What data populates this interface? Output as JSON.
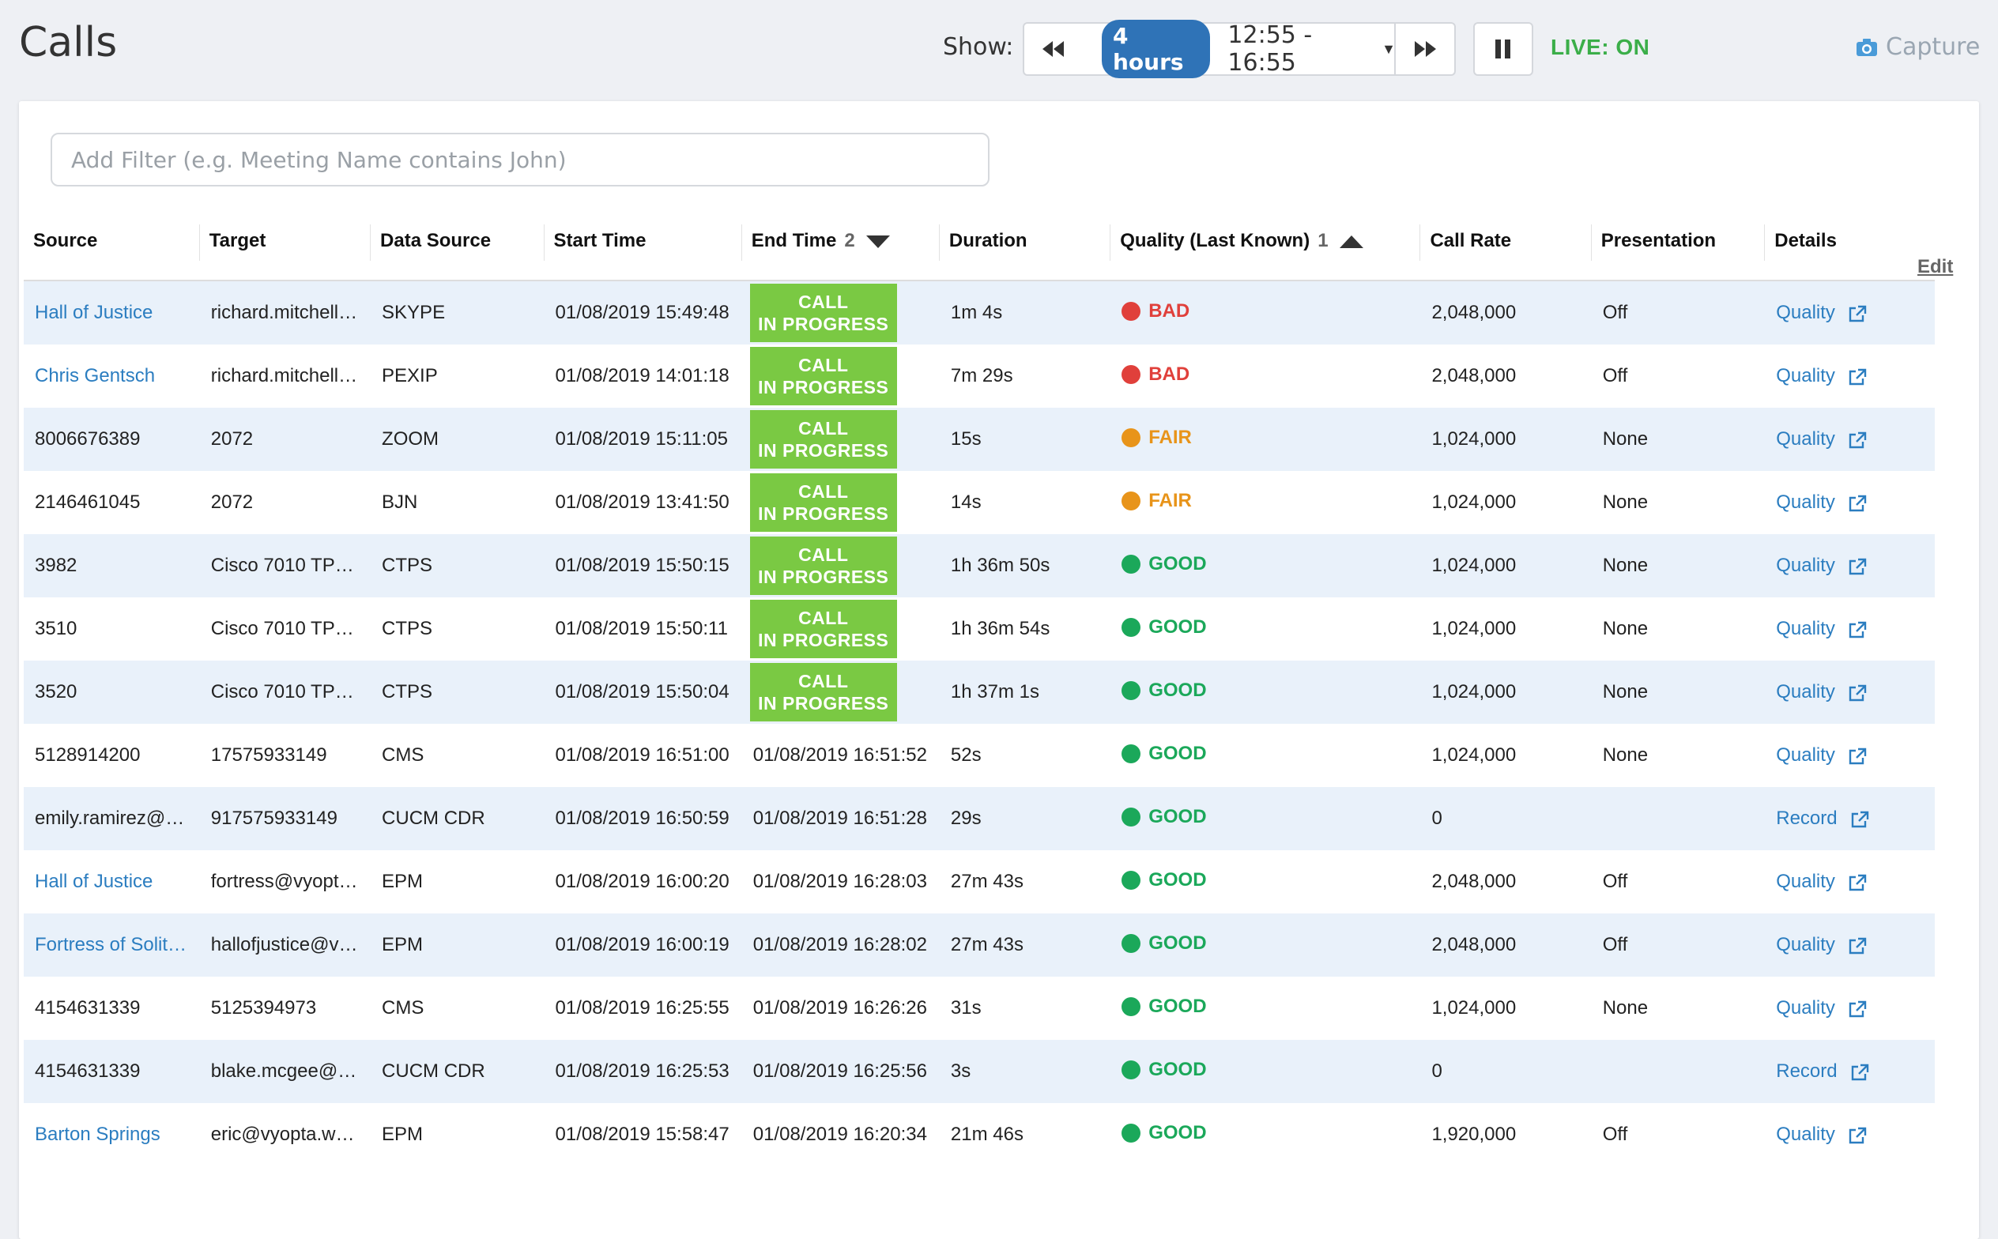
{
  "header": {
    "title": "Calls",
    "show_label": "Show:",
    "range_pill": "4 hours",
    "range_text": "12:55 - 16:55",
    "live_label": "LIVE: ON",
    "capture_label": "Capture"
  },
  "filter": {
    "placeholder": "Add Filter (e.g. Meeting Name contains John)",
    "value": ""
  },
  "edit_label": "Edit",
  "columns": {
    "source": "Source",
    "target": "Target",
    "data_source": "Data Source",
    "start_time": "Start Time",
    "end_time": "End Time",
    "end_time_sort": "2",
    "duration": "Duration",
    "quality": "Quality (Last Known)",
    "quality_sort": "1",
    "call_rate": "Call Rate",
    "presentation": "Presentation",
    "details": "Details"
  },
  "in_progress": {
    "line1": "CALL",
    "line2": "IN PROGRESS"
  },
  "quality_colors": {
    "BAD": "#e0403b",
    "FAIR": "#e8941a",
    "GOOD": "#1ba85a"
  },
  "rows": [
    {
      "source": "Hall of Justice",
      "source_link": true,
      "target": "richard.mitchell…",
      "data_source": "SKYPE",
      "start": "01/08/2019 15:49:48",
      "end": "",
      "in_progress": true,
      "duration": "1m 4s",
      "quality": "BAD",
      "call_rate": "2,048,000",
      "presentation": "Off",
      "details": "Quality"
    },
    {
      "source": "Chris Gentsch",
      "source_link": true,
      "target": "richard.mitchell…",
      "data_source": "PEXIP",
      "start": "01/08/2019 14:01:18",
      "end": "",
      "in_progress": true,
      "duration": "7m 29s",
      "quality": "BAD",
      "call_rate": "2,048,000",
      "presentation": "Off",
      "details": "Quality"
    },
    {
      "source": "8006676389",
      "source_link": false,
      "target": "2072",
      "data_source": "ZOOM",
      "start": "01/08/2019 15:11:05",
      "end": "",
      "in_progress": true,
      "duration": "15s",
      "quality": "FAIR",
      "call_rate": "1,024,000",
      "presentation": "None",
      "details": "Quality"
    },
    {
      "source": "2146461045",
      "source_link": false,
      "target": "2072",
      "data_source": "BJN",
      "start": "01/08/2019 13:41:50",
      "end": "",
      "in_progress": true,
      "duration": "14s",
      "quality": "FAIR",
      "call_rate": "1,024,000",
      "presentation": "None",
      "details": "Quality"
    },
    {
      "source": "3982",
      "source_link": false,
      "target": "Cisco 7010 TP…",
      "data_source": "CTPS",
      "start": "01/08/2019 15:50:15",
      "end": "",
      "in_progress": true,
      "duration": "1h 36m 50s",
      "quality": "GOOD",
      "call_rate": "1,024,000",
      "presentation": "None",
      "details": "Quality"
    },
    {
      "source": "3510",
      "source_link": false,
      "target": "Cisco 7010 TP…",
      "data_source": "CTPS",
      "start": "01/08/2019 15:50:11",
      "end": "",
      "in_progress": true,
      "duration": "1h 36m 54s",
      "quality": "GOOD",
      "call_rate": "1,024,000",
      "presentation": "None",
      "details": "Quality"
    },
    {
      "source": "3520",
      "source_link": false,
      "target": "Cisco 7010 TP…",
      "data_source": "CTPS",
      "start": "01/08/2019 15:50:04",
      "end": "",
      "in_progress": true,
      "duration": "1h 37m 1s",
      "quality": "GOOD",
      "call_rate": "1,024,000",
      "presentation": "None",
      "details": "Quality"
    },
    {
      "source": "5128914200",
      "source_link": false,
      "target": "17575933149",
      "data_source": "CMS",
      "start": "01/08/2019 16:51:00",
      "end": "01/08/2019 16:51:52",
      "in_progress": false,
      "duration": "52s",
      "quality": "GOOD",
      "call_rate": "1,024,000",
      "presentation": "None",
      "details": "Quality"
    },
    {
      "source": "emily.ramirez@…",
      "source_link": false,
      "target": "917575933149",
      "data_source": "CUCM CDR",
      "start": "01/08/2019 16:50:59",
      "end": "01/08/2019 16:51:28",
      "in_progress": false,
      "duration": "29s",
      "quality": "GOOD",
      "call_rate": "0",
      "presentation": "",
      "details": "Record"
    },
    {
      "source": "Hall of Justice",
      "source_link": true,
      "target": "fortress@vyopt…",
      "data_source": "EPM",
      "start": "01/08/2019 16:00:20",
      "end": "01/08/2019 16:28:03",
      "in_progress": false,
      "duration": "27m 43s",
      "quality": "GOOD",
      "call_rate": "2,048,000",
      "presentation": "Off",
      "details": "Quality"
    },
    {
      "source": "Fortress of Solit…",
      "source_link": true,
      "target": "hallofjustice@v…",
      "data_source": "EPM",
      "start": "01/08/2019 16:00:19",
      "end": "01/08/2019 16:28:02",
      "in_progress": false,
      "duration": "27m 43s",
      "quality": "GOOD",
      "call_rate": "2,048,000",
      "presentation": "Off",
      "details": "Quality"
    },
    {
      "source": "4154631339",
      "source_link": false,
      "target": "5125394973",
      "data_source": "CMS",
      "start": "01/08/2019 16:25:55",
      "end": "01/08/2019 16:26:26",
      "in_progress": false,
      "duration": "31s",
      "quality": "GOOD",
      "call_rate": "1,024,000",
      "presentation": "None",
      "details": "Quality"
    },
    {
      "source": "4154631339",
      "source_link": false,
      "target": "blake.mcgee@…",
      "data_source": "CUCM CDR",
      "start": "01/08/2019 16:25:53",
      "end": "01/08/2019 16:25:56",
      "in_progress": false,
      "duration": "3s",
      "quality": "GOOD",
      "call_rate": "0",
      "presentation": "",
      "details": "Record"
    },
    {
      "source": "Barton Springs",
      "source_link": true,
      "target": "eric@vyopta.w…",
      "data_source": "EPM",
      "start": "01/08/2019 15:58:47",
      "end": "01/08/2019 16:20:34",
      "in_progress": false,
      "duration": "21m 46s",
      "quality": "GOOD",
      "call_rate": "1,920,000",
      "presentation": "Off",
      "details": "Quality"
    }
  ]
}
